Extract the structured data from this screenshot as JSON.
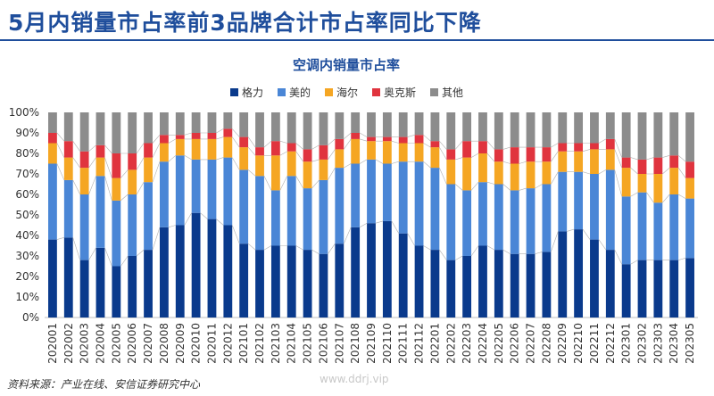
{
  "headline": "5月内销量市占率前3品牌合计市占率同比下降",
  "source": "资料来源：产业在线、安信证券研究中心",
  "watermark": "www.ddrj.vip",
  "colors": {
    "格力": "#0a3a8c",
    "美的": "#4a86d6",
    "海尔": "#f5a623",
    "奥克斯": "#e0343e",
    "其他": "#8c8c8c",
    "headline": "#1f4e9c"
  },
  "chart_data": {
    "type": "bar",
    "stacked": true,
    "title": "空调内销量市占率",
    "legend_position": "top",
    "y_ticks": [
      "0%",
      "10%",
      "20%",
      "30%",
      "40%",
      "50%",
      "60%",
      "70%",
      "80%",
      "90%",
      "100%"
    ],
    "ylim": [
      0,
      100
    ],
    "categories": [
      "202001",
      "202002",
      "202003",
      "202004",
      "202005",
      "202006",
      "202007",
      "202008",
      "202009",
      "202010",
      "202011",
      "202012",
      "202101",
      "202102",
      "202103",
      "202104",
      "202105",
      "202106",
      "202107",
      "202108",
      "202109",
      "202110",
      "202111",
      "202112",
      "202201",
      "202202",
      "202203",
      "202204",
      "202205",
      "202206",
      "202207",
      "202208",
      "202209",
      "202210",
      "202211",
      "202212",
      "202301",
      "202302",
      "202303",
      "202304",
      "202305"
    ],
    "series": [
      {
        "name": "格力",
        "values": [
          38,
          39,
          28,
          34,
          25,
          30,
          33,
          44,
          45,
          51,
          48,
          45,
          36,
          33,
          35,
          35,
          33,
          31,
          36,
          44,
          46,
          47,
          41,
          35,
          33,
          28,
          30,
          35,
          33,
          31,
          31,
          32,
          42,
          43,
          38,
          33,
          26,
          28,
          28,
          28,
          29
        ]
      },
      {
        "name": "美的",
        "values": [
          37,
          28,
          32,
          35,
          32,
          30,
          33,
          32,
          34,
          26,
          29,
          33,
          36,
          36,
          27,
          34,
          30,
          36,
          37,
          31,
          31,
          28,
          35,
          41,
          40,
          37,
          32,
          31,
          32,
          31,
          32,
          33,
          29,
          28,
          32,
          39,
          33,
          33,
          28,
          32,
          29
        ]
      },
      {
        "name": "海尔",
        "values": [
          10,
          11,
          13,
          9,
          11,
          12,
          12,
          9,
          8,
          10,
          10,
          10,
          11,
          10,
          17,
          12,
          13,
          10,
          9,
          12,
          9,
          11,
          9,
          9,
          10,
          12,
          16,
          14,
          11,
          13,
          13,
          11,
          10,
          10,
          12,
          10,
          14,
          9,
          14,
          13,
          10
        ]
      },
      {
        "name": "奥克斯",
        "values": [
          5,
          8,
          8,
          6,
          12,
          8,
          7,
          4,
          2,
          3,
          3,
          4,
          5,
          4,
          7,
          4,
          6,
          7,
          5,
          3,
          2,
          2,
          3,
          4,
          3,
          5,
          8,
          6,
          6,
          8,
          7,
          7,
          4,
          4,
          3,
          5,
          5,
          7,
          8,
          6,
          8
        ]
      },
      {
        "name": "其他",
        "values": [
          10,
          14,
          19,
          16,
          20,
          20,
          15,
          11,
          11,
          10,
          10,
          8,
          12,
          17,
          14,
          15,
          18,
          16,
          13,
          10,
          12,
          12,
          12,
          11,
          14,
          18,
          14,
          14,
          18,
          17,
          17,
          17,
          15,
          15,
          15,
          13,
          22,
          23,
          22,
          21,
          24
        ]
      }
    ]
  }
}
